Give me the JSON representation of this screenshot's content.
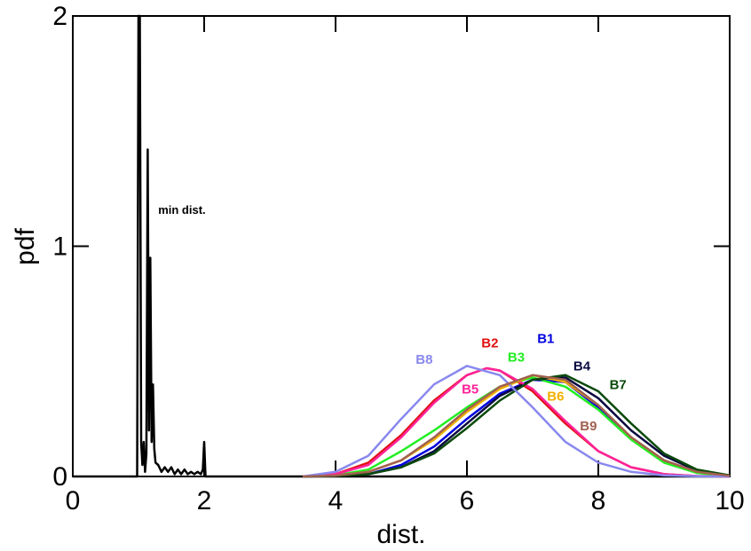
{
  "chart_data": {
    "type": "line",
    "title": "",
    "xlabel": "dist.",
    "ylabel": "pdf",
    "xlim": [
      0,
      10
    ],
    "ylim": [
      0,
      2
    ],
    "xticks": [
      0,
      2,
      4,
      6,
      8,
      10
    ],
    "yticks": [
      0,
      1,
      2
    ],
    "grid": false,
    "legend": "none (series labeled inline)",
    "annotations": [
      {
        "text": "min dist.",
        "x": 1.3,
        "y": 1.14
      }
    ],
    "series": [
      {
        "name": "min dist.",
        "color": "#000000",
        "x": [
          0,
          0.98,
          1.0,
          1.02,
          1.04,
          1.06,
          1.08,
          1.1,
          1.12,
          1.14,
          1.16,
          1.18,
          1.2,
          1.22,
          1.24,
          1.26,
          1.3,
          1.35,
          1.4,
          1.45,
          1.5,
          1.55,
          1.6,
          1.65,
          1.7,
          1.75,
          1.8,
          1.85,
          1.9,
          1.95,
          1.98,
          2.0,
          2.02,
          10
        ],
        "y": [
          0,
          0,
          2.0,
          2.0,
          0.15,
          0.05,
          0.15,
          0.02,
          0.1,
          1.42,
          0.2,
          0.95,
          0.15,
          0.4,
          0.12,
          0.06,
          0.05,
          0.02,
          0.04,
          0.02,
          0.04,
          0.01,
          0.03,
          0.01,
          0.03,
          0.01,
          0.02,
          0.01,
          0.02,
          0.01,
          0.03,
          0.15,
          0,
          0
        ]
      },
      {
        "name": "B1",
        "color": "#0000e0",
        "label_pos": [
          7.2,
          0.58
        ],
        "x": [
          3.5,
          4,
          4.5,
          5,
          5.5,
          6,
          6.5,
          7,
          7.5,
          8,
          8.5,
          9,
          9.5,
          10
        ],
        "y": [
          0,
          0.003,
          0.01,
          0.05,
          0.13,
          0.25,
          0.36,
          0.42,
          0.41,
          0.3,
          0.17,
          0.07,
          0.02,
          0.003
        ]
      },
      {
        "name": "B2",
        "color": "#e01010",
        "label_pos": [
          6.35,
          0.56
        ],
        "x": [
          3.5,
          4,
          4.5,
          5,
          5.5,
          6,
          6.3,
          6.5,
          7,
          7.5,
          8,
          8.5,
          9,
          9.5,
          10
        ],
        "y": [
          0,
          0.01,
          0.06,
          0.18,
          0.33,
          0.44,
          0.47,
          0.46,
          0.37,
          0.23,
          0.11,
          0.04,
          0.01,
          0.002,
          0
        ]
      },
      {
        "name": "B3",
        "color": "#22ee22",
        "label_pos": [
          6.75,
          0.5
        ],
        "x": [
          3.5,
          4,
          4.5,
          5,
          5.5,
          6,
          6.5,
          7,
          7.5,
          8,
          8.5,
          9,
          9.5,
          10
        ],
        "y": [
          0,
          0.005,
          0.03,
          0.11,
          0.2,
          0.3,
          0.39,
          0.43,
          0.39,
          0.29,
          0.16,
          0.06,
          0.015,
          0.002
        ]
      },
      {
        "name": "B4",
        "color": "#0a0a40",
        "label_pos": [
          7.75,
          0.46
        ],
        "x": [
          3.5,
          4,
          4.5,
          5,
          5.5,
          6,
          6.5,
          7,
          7.5,
          8,
          8.5,
          9,
          9.5,
          10
        ],
        "y": [
          0,
          0.003,
          0.01,
          0.04,
          0.11,
          0.23,
          0.35,
          0.42,
          0.43,
          0.34,
          0.2,
          0.09,
          0.025,
          0.004
        ]
      },
      {
        "name": "B5",
        "color": "#ff2299",
        "label_pos": [
          6.05,
          0.36
        ],
        "x": [
          3.5,
          4,
          4.5,
          5,
          5.5,
          6,
          6.3,
          6.5,
          7,
          7.5,
          8,
          8.5,
          9,
          9.5,
          10
        ],
        "y": [
          0,
          0.01,
          0.05,
          0.17,
          0.32,
          0.44,
          0.47,
          0.46,
          0.38,
          0.24,
          0.11,
          0.04,
          0.01,
          0.002,
          0
        ]
      },
      {
        "name": "B6",
        "color": "#f0b000",
        "label_pos": [
          7.35,
          0.33
        ],
        "x": [
          3.5,
          4,
          4.5,
          5,
          5.5,
          6,
          6.5,
          7,
          7.5,
          8,
          8.5,
          9,
          9.5,
          10
        ],
        "y": [
          0,
          0.004,
          0.02,
          0.07,
          0.16,
          0.28,
          0.38,
          0.44,
          0.41,
          0.31,
          0.17,
          0.07,
          0.02,
          0.003
        ]
      },
      {
        "name": "B7",
        "color": "#0b4a0b",
        "label_pos": [
          8.3,
          0.38
        ],
        "x": [
          3.5,
          4,
          4.5,
          5,
          5.5,
          6,
          6.5,
          7,
          7.5,
          8,
          8.5,
          9,
          9.5,
          10
        ],
        "y": [
          0,
          0.002,
          0.01,
          0.04,
          0.1,
          0.21,
          0.33,
          0.42,
          0.44,
          0.37,
          0.23,
          0.1,
          0.03,
          0.005
        ]
      },
      {
        "name": "B8",
        "color": "#8888ee",
        "label_pos": [
          5.35,
          0.49
        ],
        "x": [
          3.5,
          4,
          4.5,
          5,
          5.5,
          6,
          6.5,
          7,
          7.5,
          8,
          8.5,
          9,
          9.5,
          10
        ],
        "y": [
          0,
          0.02,
          0.09,
          0.25,
          0.4,
          0.48,
          0.44,
          0.3,
          0.15,
          0.06,
          0.02,
          0.005,
          0.001,
          0
        ]
      },
      {
        "name": "B9",
        "color": "#a06050",
        "label_pos": [
          7.85,
          0.2
        ],
        "x": [
          3.5,
          4,
          4.5,
          5,
          5.5,
          6,
          6.5,
          7,
          7.5,
          8,
          8.5,
          9,
          9.5,
          10
        ],
        "y": [
          0,
          0.004,
          0.02,
          0.07,
          0.17,
          0.29,
          0.39,
          0.44,
          0.42,
          0.31,
          0.17,
          0.07,
          0.02,
          0.003
        ]
      }
    ]
  }
}
